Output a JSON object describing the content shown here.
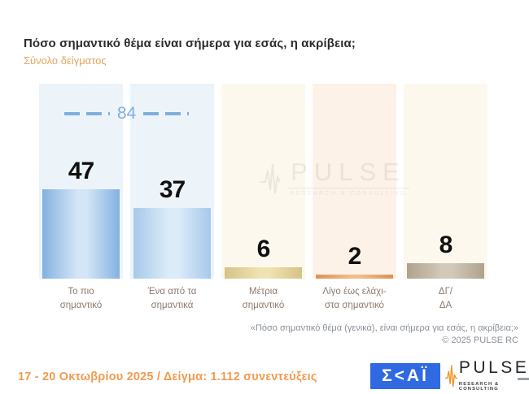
{
  "title": "Πόσο σημαντικό θέμα είναι σήμερα για εσάς, η ακρίβεια;",
  "subtitle": "Σύνολο δείγματος",
  "chart_data": {
    "type": "bar",
    "title": "Πόσο σημαντικό θέμα είναι σήμερα για εσάς, η ακρίβεια;",
    "subtitle": "Σύνολο δείγματος",
    "categories": [
      "Το πιο σημαντικό",
      "Ένα από τα σημαντικά",
      "Μέτρια σημαντικό",
      "Λίγο έως ελάχιστα σημαντικό",
      "ΔΓ/ΔΑ"
    ],
    "categories_lines": [
      [
        "Το πιο",
        "σημαντικό"
      ],
      [
        "Ένα από τα",
        "σημαντικά"
      ],
      [
        "Μέτρια",
        "σημαντικό"
      ],
      [
        "Λίγο έως ελάχι-",
        "στα σημαντικό"
      ],
      [
        "ΔΓ/",
        "ΔΑ"
      ]
    ],
    "values": [
      47,
      37,
      6,
      2,
      8
    ],
    "ylim": [
      0,
      100
    ],
    "grid": false,
    "legend": false,
    "group_annotation": {
      "label": "84",
      "covers": [
        "Το πιο σημαντικό",
        "Ένα από τα σημαντικά"
      ],
      "color": "#7fafdd"
    },
    "column_bg": [
      "#ecf4fa",
      "#ecf4fa",
      "#fdf8ee",
      "#fdf2e8",
      "#fdf8ee"
    ],
    "bar_colors": [
      {
        "edge": "#84b1e0",
        "mid": "#d3e5f6"
      },
      {
        "edge": "#a6c9ea",
        "mid": "#dcebf8"
      },
      {
        "edge": "#d5c285",
        "mid": "#efe3b4"
      },
      {
        "edge": "#db9255",
        "mid": "#f2bc8c"
      },
      {
        "edge": "#afa18c",
        "mid": "#d2c9ba"
      }
    ]
  },
  "watermark": {
    "brand": "PULSE",
    "tagline": "RESEARCH & CONSULTING"
  },
  "footnote": {
    "line1": "«Πόσο σημαντικό θέμα (γενικά), είναι σήμερα για εσάς, η ακρίβεια;»",
    "line2": "©  2025  PULSE RC"
  },
  "footer": {
    "fieldwork": "17 - 20 Οκτωβρίου 2025  /  Δείγμα:  1.112 συνεντεύξεις",
    "skai_logo_text": "Σ<ΑΪ",
    "pulse_logo_text": "PULSE",
    "pulse_logo_tagline": "RESEARCH & CONSULTING",
    "accent_orange": "#f39a4e",
    "skai_blue": "#2f6ae3"
  }
}
